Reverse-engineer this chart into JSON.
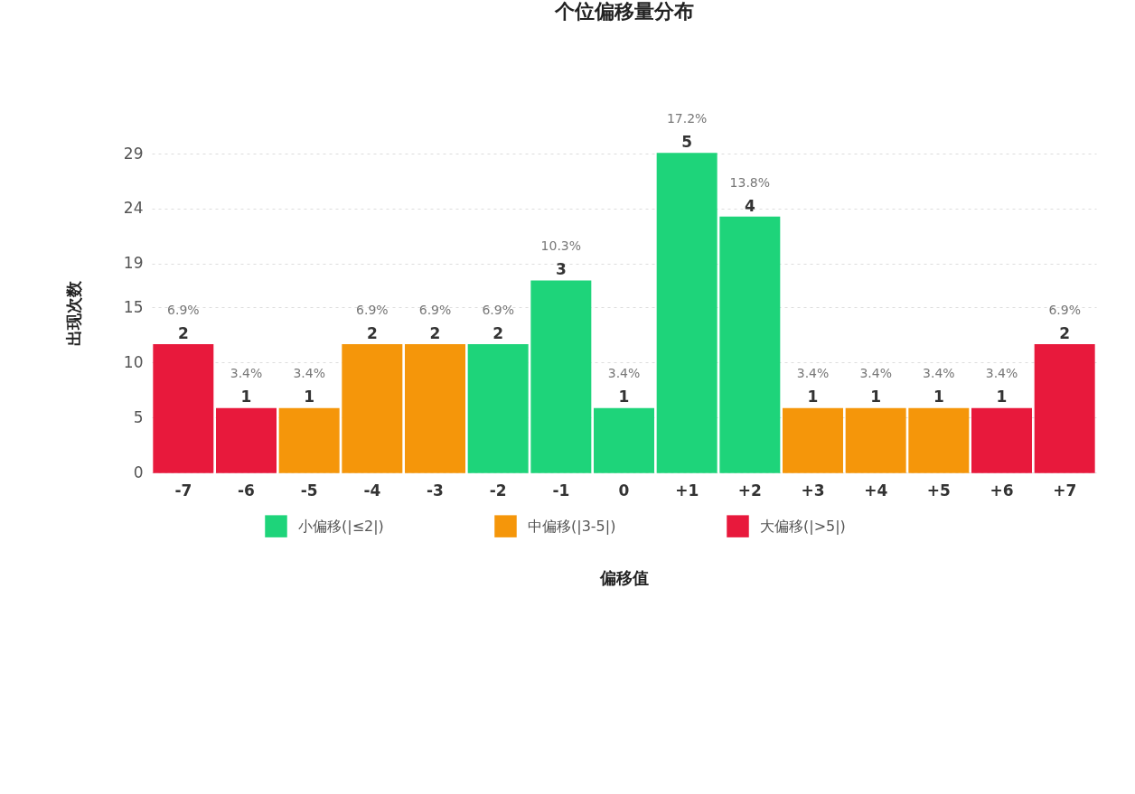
{
  "chart_data": {
    "type": "bar",
    "title": "个位偏移量分布",
    "xlabel": "偏移值",
    "ylabel": "出现次数",
    "categories": [
      "-7",
      "-6",
      "-5",
      "-4",
      "-3",
      "-2",
      "-1",
      "0",
      "+1",
      "+2",
      "+3",
      "+4",
      "+5",
      "+6",
      "+7"
    ],
    "series": [
      {
        "name": "小偏移(|≤2|)",
        "color": "#1ed47a",
        "values": [
          null,
          null,
          null,
          null,
          null,
          11.6,
          17.4,
          5.8,
          29,
          23.2,
          null,
          null,
          null,
          null,
          null
        ]
      },
      {
        "name": "中偏移(|3-5|)",
        "color": "#f5960a",
        "values": [
          null,
          null,
          5.8,
          11.6,
          11.6,
          null,
          null,
          null,
          null,
          null,
          5.8,
          5.8,
          5.8,
          null,
          null
        ]
      },
      {
        "name": "大偏移(|>5|)",
        "color": "#e8193c",
        "values": [
          11.6,
          5.8,
          null,
          null,
          null,
          null,
          null,
          null,
          null,
          null,
          null,
          null,
          null,
          5.8,
          11.6
        ]
      }
    ],
    "ylim": [
      0,
      29
    ],
    "yticks": [
      0,
      5,
      10,
      15,
      19,
      24,
      29
    ],
    "grid": "y",
    "legend": "bottom",
    "annotations": [
      {
        "text": "6.9%",
        "x": "-7",
        "y": 11.6
      },
      {
        "text": "3.4%",
        "x": "-6",
        "y": 5.8
      },
      {
        "text": "3.4%",
        "x": "-5",
        "y": 5.8
      },
      {
        "text": "6.9%",
        "x": "-4",
        "y": 11.6
      },
      {
        "text": "6.9%",
        "x": "-3",
        "y": 11.6
      },
      {
        "text": "6.9%",
        "x": "-2",
        "y": 11.6
      },
      {
        "text": "10.3%",
        "x": "-1",
        "y": 17.4
      },
      {
        "text": "3.4%",
        "x": "0",
        "y": 5.8
      },
      {
        "text": "17.2%",
        "x": "+1",
        "y": 29
      },
      {
        "text": "13.8%",
        "x": "+2",
        "y": 23.2
      },
      {
        "text": "3.4%",
        "x": "+3",
        "y": 5.8
      },
      {
        "text": "3.4%",
        "x": "+4",
        "y": 5.8
      },
      {
        "text": "3.4%",
        "x": "+5",
        "y": 5.8
      },
      {
        "text": "3.4%",
        "x": "+6",
        "y": 5.8
      },
      {
        "text": "6.9%",
        "x": "+7",
        "y": 11.6
      },
      {
        "text": "2",
        "x": "-7",
        "y": 11.6
      },
      {
        "text": "1",
        "x": "-6",
        "y": 5.8
      },
      {
        "text": "1",
        "x": "-5",
        "y": 5.8
      },
      {
        "text": "2",
        "x": "-4",
        "y": 11.6
      },
      {
        "text": "2",
        "x": "-3",
        "y": 11.6
      },
      {
        "text": "2",
        "x": "-2",
        "y": 11.6
      },
      {
        "text": "3",
        "x": "-1",
        "y": 17.4
      },
      {
        "text": "1",
        "x": "0",
        "y": 5.8
      },
      {
        "text": "5",
        "x": "+1",
        "y": 29
      },
      {
        "text": "4",
        "x": "+2",
        "y": 23.2
      },
      {
        "text": "1",
        "x": "+3",
        "y": 5.8
      },
      {
        "text": "1",
        "x": "+4",
        "y": 5.8
      },
      {
        "text": "1",
        "x": "+5",
        "y": 5.8
      },
      {
        "text": "1",
        "x": "+6",
        "y": 5.8
      },
      {
        "text": "2",
        "x": "+7",
        "y": 11.6
      }
    ]
  }
}
